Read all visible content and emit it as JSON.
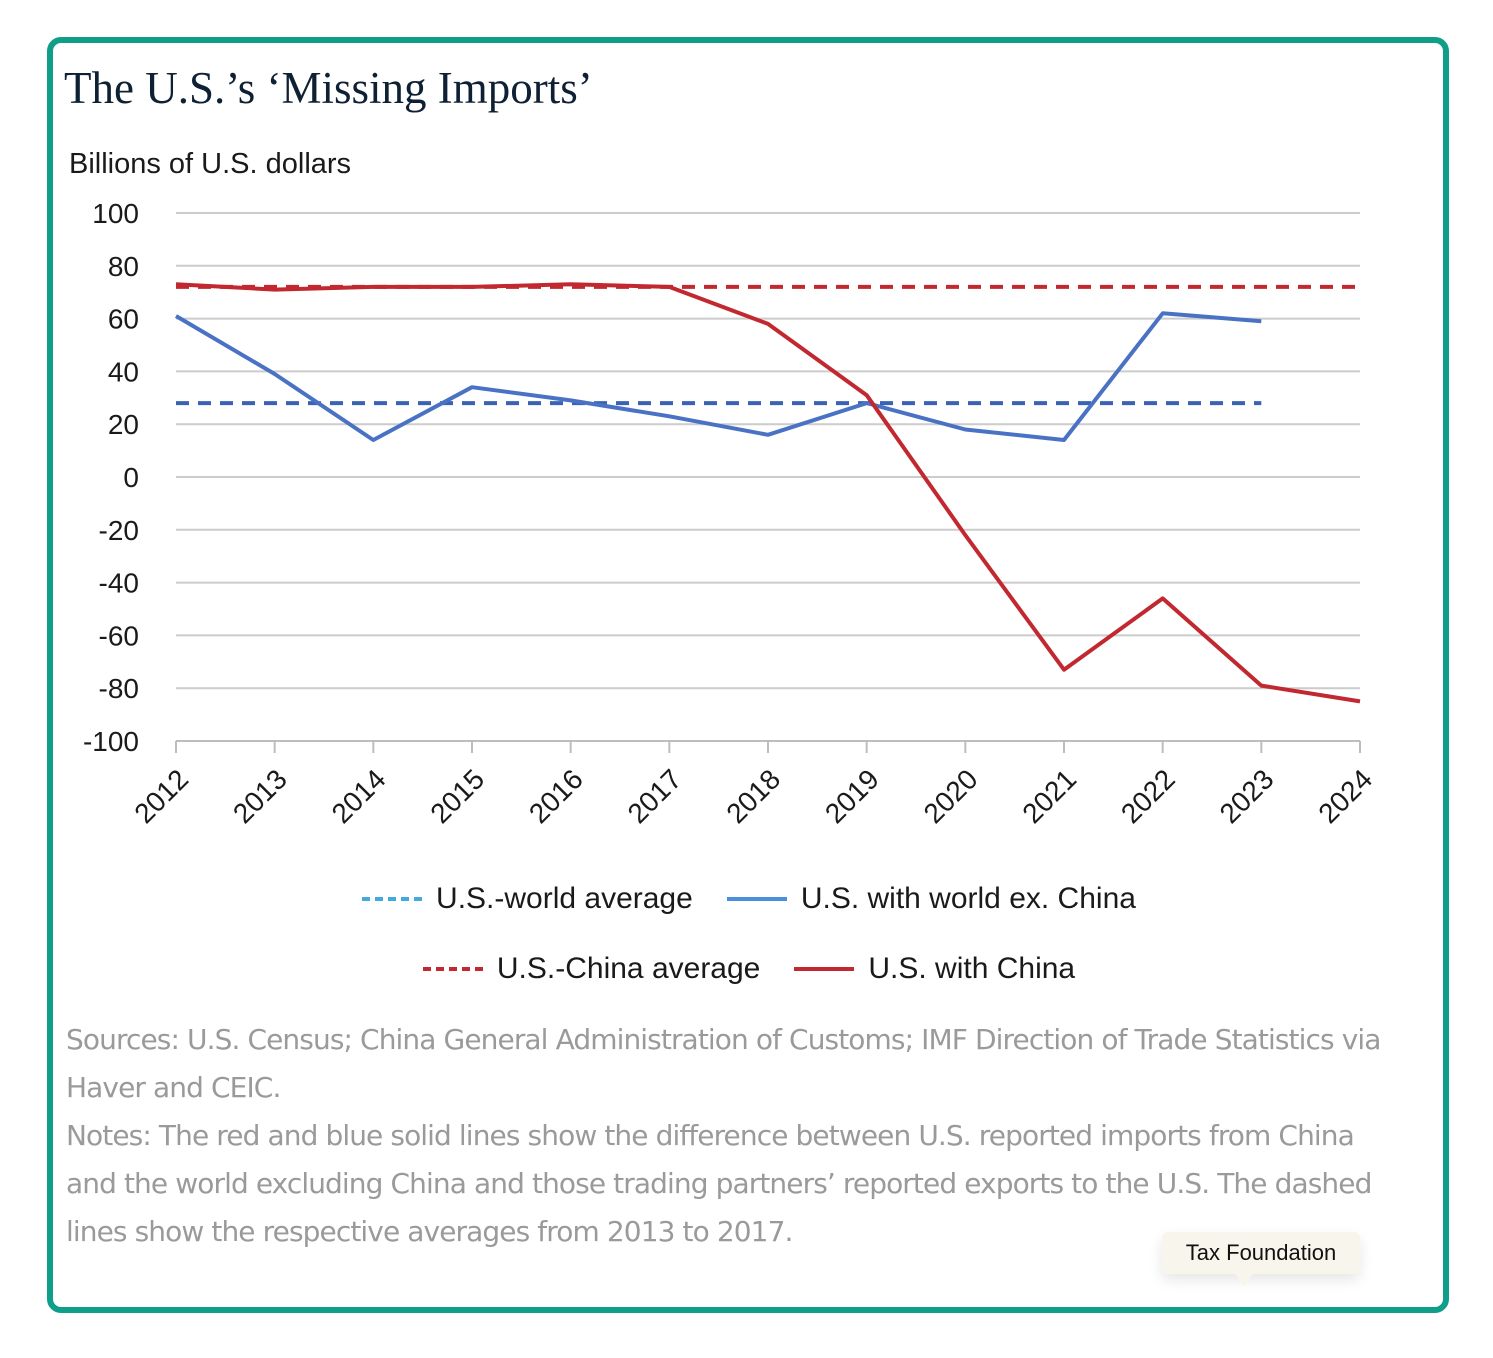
{
  "title": "The U.S.’s ‘Missing Imports’",
  "colors": {
    "border": "#0f9e8a",
    "blue_solid": "#4a8fdb",
    "blue_dashed": "#45a9e0",
    "blue_avg_line": "#3b63b5",
    "blue_series_line": "#4a72c4",
    "red": "#c2282f",
    "grid": "#cccccc"
  },
  "chart_data": {
    "type": "line",
    "ylabel": "Billions of U.S. dollars",
    "xlabel": "",
    "ylim": [
      -100,
      100
    ],
    "yticks": [
      "100",
      "80",
      "60",
      "40",
      "20",
      "0",
      "-20",
      "-40",
      "-60",
      "-80",
      "-100"
    ],
    "x": [
      "2012",
      "2013",
      "2014",
      "2015",
      "2016",
      "2017",
      "2018",
      "2019",
      "2020",
      "2021",
      "2022",
      "2023",
      "2024"
    ],
    "grid": true,
    "legend_placement": "bottom",
    "series": [
      {
        "name": "U.S.-world average",
        "style": "dashed",
        "values": [
          28,
          28,
          28,
          28,
          28,
          28,
          28,
          28,
          28,
          28,
          28,
          28,
          null
        ]
      },
      {
        "name": "U.S. with world ex. China",
        "style": "solid",
        "values": [
          61,
          39,
          14,
          34,
          29,
          23,
          16,
          28,
          18,
          14,
          62,
          59,
          null
        ]
      },
      {
        "name": "U.S.-China average",
        "style": "dashed",
        "values": [
          72,
          72,
          72,
          72,
          72,
          72,
          72,
          72,
          72,
          72,
          72,
          72,
          72
        ]
      },
      {
        "name": "U.S. with China",
        "style": "solid",
        "values": [
          73,
          71,
          72,
          72,
          73,
          72,
          58,
          31,
          -22,
          -73,
          -46,
          -79,
          -85
        ]
      }
    ]
  },
  "legend": {
    "world_avg": "U.S.-world average",
    "world_ex_china": "U.S. with world ex. China",
    "china_avg": "U.S.-China average",
    "with_china": "U.S. with China"
  },
  "notes": {
    "sources": "Sources: U.S. Census; China General Administration of Customs; IMF Direction of Trade Statistics via Haver and CEIC.",
    "notes": "Notes: The red and blue solid lines show the difference between U.S. reported imports from China and the world excluding China and those trading partners’ reported exports to the U.S. The dashed lines show the respective averages from 2013 to 2017."
  },
  "badge": "Tax Foundation"
}
